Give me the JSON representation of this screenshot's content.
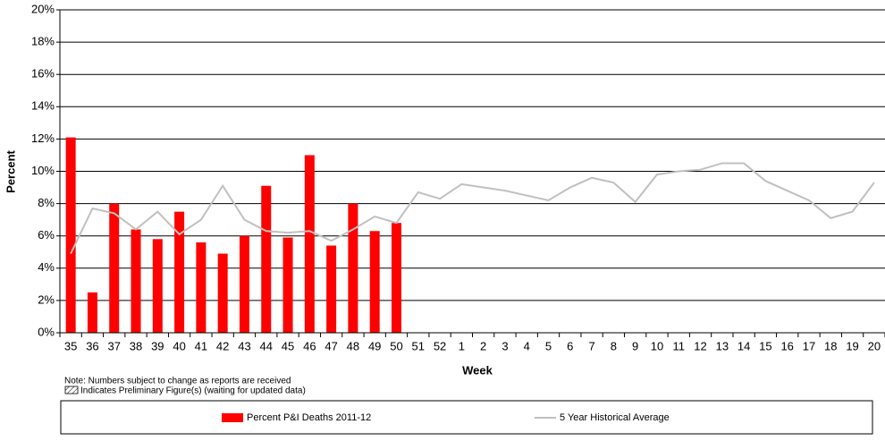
{
  "chart_data": {
    "type": "bar_line",
    "x_label": "Week",
    "y_label": "Percent",
    "categories": [
      "35",
      "36",
      "37",
      "38",
      "39",
      "40",
      "41",
      "42",
      "43",
      "44",
      "45",
      "46",
      "47",
      "48",
      "49",
      "50",
      "51",
      "52",
      "1",
      "2",
      "3",
      "4",
      "5",
      "6",
      "7",
      "8",
      "9",
      "10",
      "11",
      "12",
      "13",
      "14",
      "15",
      "16",
      "17",
      "18",
      "19",
      "20"
    ],
    "series": [
      {
        "name": "Percent P&I Deaths 2011-12",
        "type": "bar",
        "color": "#ff0000",
        "values": [
          12.1,
          2.5,
          8.0,
          6.4,
          5.8,
          7.5,
          5.6,
          4.9,
          6.0,
          9.1,
          5.9,
          11.0,
          5.4,
          8.0,
          6.3,
          6.8,
          null,
          null,
          null,
          null,
          null,
          null,
          null,
          null,
          null,
          null,
          null,
          null,
          null,
          null,
          null,
          null,
          null,
          null,
          null,
          null,
          null,
          null
        ]
      },
      {
        "name": "5 Year Historical Average",
        "type": "line",
        "color": "#c0c0c0",
        "values": [
          4.9,
          7.7,
          7.4,
          6.4,
          7.5,
          6.1,
          7.0,
          9.1,
          7.0,
          6.3,
          6.2,
          6.3,
          5.7,
          6.4,
          7.2,
          6.8,
          8.7,
          8.3,
          9.2,
          9.0,
          8.8,
          8.5,
          8.2,
          9.0,
          9.6,
          9.3,
          8.1,
          9.8,
          10.0,
          10.1,
          10.5,
          10.5,
          9.4,
          8.8,
          8.2,
          7.1,
          7.5,
          9.3
        ]
      }
    ],
    "ylim": [
      0,
      20
    ],
    "yticks": [
      {
        "value": 0,
        "label": "0%"
      },
      {
        "value": 2,
        "label": "2%"
      },
      {
        "value": 4,
        "label": "4%"
      },
      {
        "value": 6,
        "label": "6%"
      },
      {
        "value": 8,
        "label": "8%"
      },
      {
        "value": 10,
        "label": "10%"
      },
      {
        "value": 12,
        "label": "12%"
      },
      {
        "value": 14,
        "label": "14%"
      },
      {
        "value": 16,
        "label": "16%"
      },
      {
        "value": 18,
        "label": "18%"
      },
      {
        "value": 20,
        "label": "20%"
      }
    ],
    "grid": true,
    "notes": [
      "Note: Numbers subject to change as reports are received",
      "Indicates Preliminary Figure(s) (waiting for updated data)"
    ]
  }
}
